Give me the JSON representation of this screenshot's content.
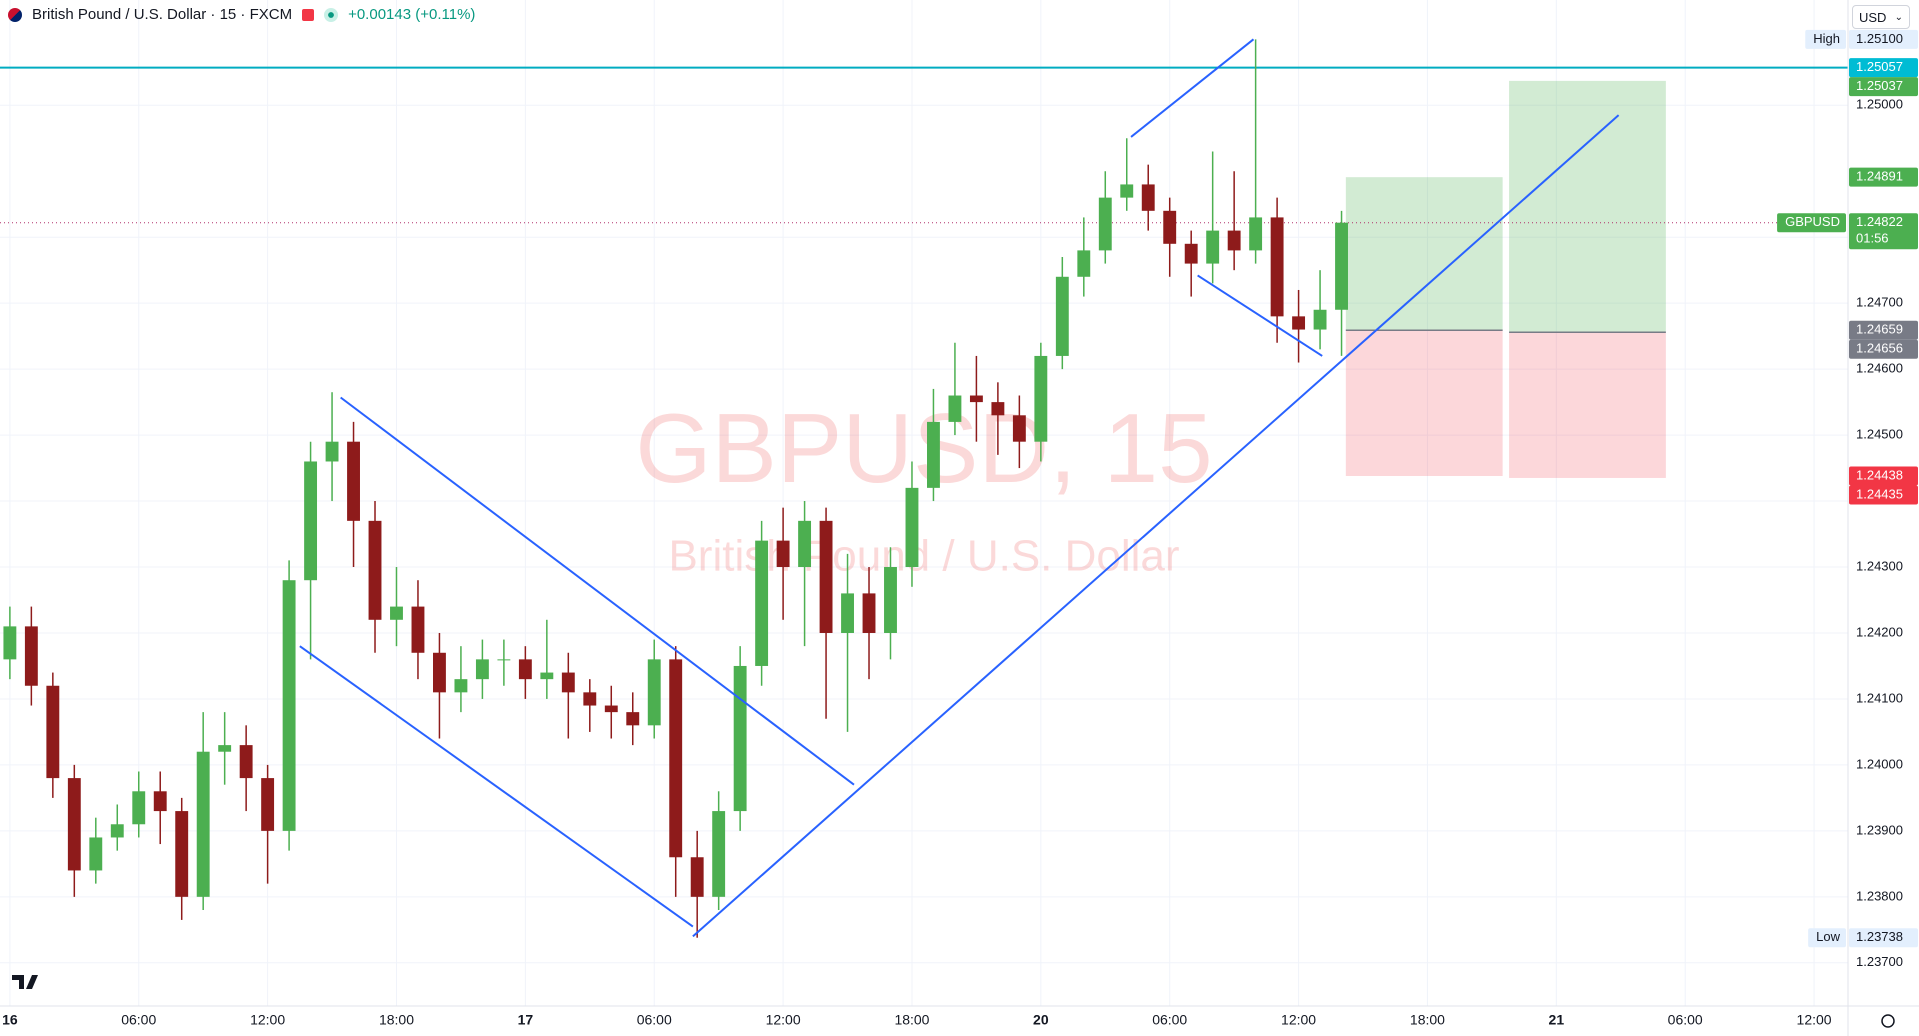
{
  "header": {
    "symbol": "British Pound / U.S. Dollar · 15 · FXCM",
    "change": "+0.00143 (+0.11%)"
  },
  "currency": "USD",
  "watermark": {
    "title": "GBPUSD, 15",
    "subtitle": "British Pound / U.S. Dollar"
  },
  "chart_data": {
    "type": "candlestick",
    "x": [
      0,
      1,
      2,
      3,
      4,
      5,
      6,
      7,
      8,
      9,
      10,
      11,
      12,
      13,
      14,
      15,
      16,
      17,
      18,
      19,
      20,
      21,
      22,
      23,
      24,
      25,
      26,
      27,
      28,
      29,
      30,
      31,
      32,
      33,
      34,
      35,
      36,
      37,
      38,
      39,
      40,
      41,
      42,
      43,
      44,
      45,
      46,
      47,
      48,
      49,
      50,
      51,
      52,
      53,
      54,
      55,
      56,
      57,
      58,
      59,
      60,
      61,
      62
    ],
    "open": [
      1.2416,
      1.2421,
      1.2412,
      1.2398,
      1.2384,
      1.2389,
      1.2391,
      1.2396,
      1.2393,
      1.238,
      1.2402,
      1.2403,
      1.2398,
      1.239,
      1.2428,
      1.2446,
      1.2449,
      1.2437,
      1.2422,
      1.2424,
      1.2417,
      1.2411,
      1.2413,
      1.2416,
      1.2416,
      1.2413,
      1.2414,
      1.2411,
      1.2409,
      1.2408,
      1.2406,
      1.2416,
      1.2386,
      1.238,
      1.2393,
      1.2415,
      1.2434,
      1.243,
      1.2437,
      1.242,
      1.2426,
      1.242,
      1.243,
      1.2442,
      1.2452,
      1.2456,
      1.2455,
      1.2453,
      1.2449,
      1.2462,
      1.2474,
      1.2478,
      1.2486,
      1.2488,
      1.2484,
      1.2479,
      1.2476,
      1.2481,
      1.2478,
      1.2483,
      1.2468,
      1.2466,
      1.2469
    ],
    "high": [
      1.2424,
      1.2424,
      1.2414,
      1.24,
      1.2392,
      1.2394,
      1.2399,
      1.2399,
      1.2395,
      1.2408,
      1.2408,
      1.2406,
      1.24,
      1.2431,
      1.2449,
      1.24565,
      1.2452,
      1.244,
      1.243,
      1.2428,
      1.242,
      1.2418,
      1.2419,
      1.2419,
      1.2418,
      1.2422,
      1.2417,
      1.2413,
      1.2412,
      1.2411,
      1.2419,
      1.2418,
      1.239,
      1.2396,
      1.2418,
      1.2437,
      1.2439,
      1.244,
      1.2439,
      1.2432,
      1.243,
      1.2433,
      1.2446,
      1.2457,
      1.2464,
      1.2462,
      1.2458,
      1.2456,
      1.2464,
      1.2477,
      1.2483,
      1.249,
      1.2495,
      1.2491,
      1.2486,
      1.2481,
      1.2493,
      1.249,
      1.251,
      1.2486,
      1.2472,
      1.2475,
      1.2484
    ],
    "low": [
      1.2413,
      1.2409,
      1.2395,
      1.238,
      1.2382,
      1.2387,
      1.2389,
      1.2388,
      1.23765,
      1.2378,
      1.2397,
      1.2393,
      1.2382,
      1.2387,
      1.2416,
      1.244,
      1.243,
      1.2417,
      1.2418,
      1.2413,
      1.2404,
      1.2408,
      1.241,
      1.2412,
      1.241,
      1.241,
      1.2404,
      1.2405,
      1.2404,
      1.2403,
      1.2404,
      1.238,
      1.23738,
      1.2378,
      1.239,
      1.2412,
      1.2422,
      1.2418,
      1.2407,
      1.2405,
      1.2413,
      1.2416,
      1.2427,
      1.244,
      1.245,
      1.2449,
      1.2447,
      1.2445,
      1.2446,
      1.246,
      1.2471,
      1.2476,
      1.2484,
      1.2481,
      1.2474,
      1.2471,
      1.2473,
      1.2475,
      1.2476,
      1.2464,
      1.2461,
      1.2463,
      1.2462
    ],
    "close": [
      1.2421,
      1.2412,
      1.2398,
      1.2384,
      1.2389,
      1.2391,
      1.2396,
      1.2393,
      1.238,
      1.2402,
      1.2403,
      1.2398,
      1.239,
      1.2428,
      1.2446,
      1.2449,
      1.2437,
      1.2422,
      1.2424,
      1.2417,
      1.2411,
      1.2413,
      1.2416,
      1.2416,
      1.2413,
      1.2414,
      1.2411,
      1.2409,
      1.2408,
      1.2406,
      1.2416,
      1.2386,
      1.238,
      1.2393,
      1.2415,
      1.2434,
      1.243,
      1.2437,
      1.242,
      1.2426,
      1.242,
      1.243,
      1.2442,
      1.2452,
      1.2456,
      1.2455,
      1.2453,
      1.2449,
      1.2462,
      1.2474,
      1.2478,
      1.2486,
      1.2488,
      1.2484,
      1.2479,
      1.2476,
      1.2481,
      1.2478,
      1.2483,
      1.2468,
      1.2466,
      1.2469,
      1.24822
    ],
    "up_color": "#4caf50",
    "down_color": "#8e1b1b",
    "xlim": [
      -0.46,
      85.58
    ],
    "xticks": [
      {
        "value": 0,
        "label": "16"
      },
      {
        "value": 6,
        "label": "06:00"
      },
      {
        "value": 12,
        "label": "12:00"
      },
      {
        "value": 18,
        "label": "18:00"
      },
      {
        "value": 24,
        "label": "17"
      },
      {
        "value": 30,
        "label": "06:00"
      },
      {
        "value": 36,
        "label": "12:00"
      },
      {
        "value": 42,
        "label": "18:00"
      },
      {
        "value": 48,
        "label": "20"
      },
      {
        "value": 54,
        "label": "06:00"
      },
      {
        "value": 60,
        "label": "12:00"
      },
      {
        "value": 66,
        "label": "18:00"
      },
      {
        "value": 72,
        "label": "21"
      },
      {
        "value": 78,
        "label": "06:00"
      },
      {
        "value": 84,
        "label": "12:00"
      }
    ],
    "ylim": [
      1.236345,
      1.251596
    ],
    "yticks": [
      {
        "value": 1.237,
        "label": "1.23700"
      },
      {
        "value": 1.238,
        "label": "1.23800"
      },
      {
        "value": 1.239,
        "label": "1.23900"
      },
      {
        "value": 1.24,
        "label": "1.24000"
      },
      {
        "value": 1.241,
        "label": "1.24100"
      },
      {
        "value": 1.242,
        "label": "1.24200"
      },
      {
        "value": 1.243,
        "label": "1.24300"
      },
      {
        "value": 1.244,
        "label": "1.24400"
      },
      {
        "value": 1.245,
        "label": "1.24500"
      },
      {
        "value": 1.246,
        "label": "1.24600"
      },
      {
        "value": 1.247,
        "label": "1.24700"
      },
      {
        "value": 1.248,
        "label": "1.24800"
      },
      {
        "value": 1.25,
        "label": "1.25000"
      }
    ],
    "grid": true,
    "price_labels": [
      {
        "tag": "High",
        "value": 1.251,
        "label": "1.25100",
        "style": "extreme",
        "color": "#e3effd"
      },
      {
        "value": 1.25057,
        "color": "#00bcd4",
        "line": "solid",
        "line_color": "#00acc1"
      },
      {
        "tag": "GBPUSD",
        "value": 1.24822,
        "countdown": "01:56",
        "color": "#4caf50",
        "line": "dotted",
        "line_color": "#b0306a"
      },
      {
        "tag": "Low",
        "value": 1.23738,
        "style": "extreme",
        "color": "#e3effd"
      }
    ],
    "positions": [
      {
        "x0": 62.2,
        "x1": 69.5,
        "entry": 1.24659,
        "target": 1.24891,
        "stop": 1.24438
      },
      {
        "x0": 69.8,
        "x1": 77.1,
        "entry": 1.24656,
        "target": 1.25037,
        "stop": 1.24435
      }
    ],
    "target_color": "#4caf50",
    "stop_color": "#f23645",
    "entry_color": "#787b86",
    "drawing_color": "#2962ff",
    "drawings": [
      {
        "points": [
          [
            15.4,
            1.24557
          ],
          [
            39.3,
            1.2397
          ]
        ]
      },
      {
        "points": [
          [
            13.5,
            1.2418
          ],
          [
            31.8,
            1.23755
          ]
        ]
      },
      {
        "points": [
          [
            31.8,
            1.2374
          ],
          [
            74.9,
            1.24985
          ]
        ]
      },
      {
        "points": [
          [
            52.2,
            1.24952
          ],
          [
            57.9,
            1.251
          ]
        ]
      },
      {
        "points": [
          [
            55.3,
            1.24742
          ],
          [
            61.1,
            1.2462
          ]
        ]
      }
    ]
  }
}
